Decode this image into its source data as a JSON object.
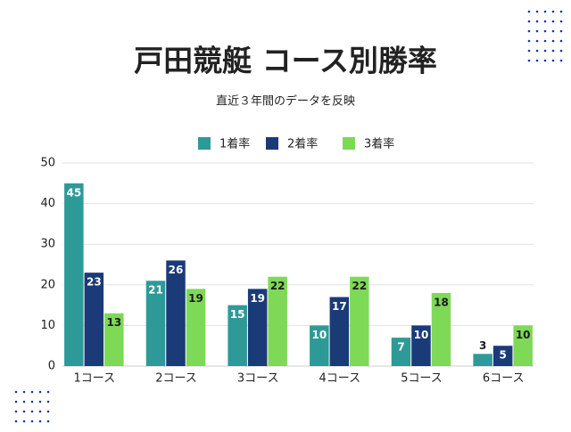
{
  "chart_data": {
    "type": "bar",
    "title": "戸田競艇 コース別勝率",
    "subtitle": "直近３年間のデータを反映",
    "categories": [
      "1コース",
      "2コース",
      "3コース",
      "4コース",
      "5コース",
      "6コース"
    ],
    "series": [
      {
        "name": "1着率",
        "color": "#2e9a98",
        "values": [
          45,
          21,
          15,
          10,
          7,
          3
        ]
      },
      {
        "name": "2着率",
        "color": "#1b3a78",
        "values": [
          23,
          26,
          19,
          17,
          10,
          5
        ]
      },
      {
        "name": "3着率",
        "color": "#7ed957",
        "values": [
          13,
          19,
          22,
          22,
          18,
          10
        ]
      }
    ],
    "ylim": [
      0,
      50
    ],
    "yticks": [
      0,
      10,
      20,
      30,
      40,
      50
    ],
    "grid": true,
    "legend": "top"
  }
}
